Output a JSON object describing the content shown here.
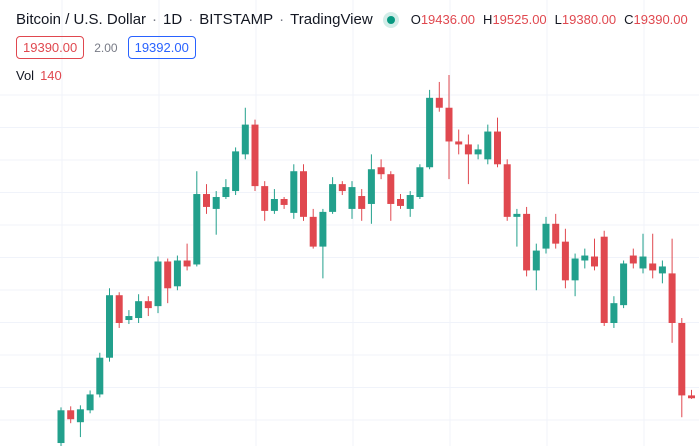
{
  "header": {
    "symbol": "Bitcoin / U.S. Dollar",
    "interval": "1D",
    "exchange": "BITSTAMP",
    "source": "TradingView",
    "ohlc": [
      {
        "key": "O",
        "value": "19436.00"
      },
      {
        "key": "H",
        "value": "19525.00"
      },
      {
        "key": "L",
        "value": "19380.00"
      },
      {
        "key": "C",
        "value": "19390.00"
      }
    ]
  },
  "quote": {
    "bid": "19390.00",
    "spread": "2.00",
    "ask": "19392.00"
  },
  "volume": {
    "label": "Vol",
    "value": "140"
  },
  "chart_data": {
    "type": "candlestick",
    "up_color": "#22a08c",
    "down_color": "#e0484f",
    "open": [
      18668,
      19196,
      19004,
      19196,
      19452,
      20044,
      21052,
      20652,
      20684,
      20956,
      20876,
      21596,
      21196,
      21612,
      21548,
      22684,
      22444,
      22636,
      22732,
      23324,
      23804,
      22812,
      22412,
      22604,
      22380,
      23052,
      22316,
      21836,
      22396,
      22844,
      22444,
      22652,
      22524,
      23116,
      23004,
      22604,
      22444,
      22636,
      23116,
      24236,
      24076,
      23532,
      23484,
      23324,
      23244,
      23692,
      23164,
      22316,
      22364,
      21452,
      21804,
      22204,
      21916,
      21292,
      21612,
      21676,
      21996,
      20604,
      20892,
      21692,
      21484,
      21564,
      21404,
      21404,
      20604,
      19436
    ],
    "high": [
      19244,
      19260,
      19276,
      19516,
      20124,
      21164,
      21100,
      20812,
      21068,
      21036,
      21676,
      21644,
      21692,
      21884,
      23052,
      22844,
      22732,
      22924,
      23436,
      24076,
      23884,
      22892,
      22764,
      22636,
      23164,
      23164,
      22444,
      22444,
      22956,
      22892,
      22892,
      22764,
      23324,
      23244,
      23052,
      22684,
      22732,
      23164,
      24364,
      24492,
      24604,
      23724,
      23644,
      23484,
      23804,
      23916,
      23244,
      22444,
      22476,
      21884,
      22316,
      22364,
      22124,
      21724,
      21804,
      21964,
      22092,
      21036,
      21612,
      21804,
      22044,
      22044,
      21612,
      21964,
      20684,
      19525
    ],
    "low": [
      18620,
      18988,
      18764,
      19148,
      19404,
      19980,
      20524,
      20588,
      20604,
      20716,
      20764,
      20924,
      21132,
      21452,
      21516,
      22364,
      22028,
      22604,
      22668,
      23244,
      22732,
      22252,
      22364,
      22444,
      22284,
      22252,
      21804,
      21324,
      22364,
      22668,
      22284,
      22252,
      22204,
      22924,
      22252,
      22444,
      22316,
      22604,
      23084,
      24012,
      22924,
      23324,
      22844,
      23244,
      23164,
      23116,
      22252,
      21836,
      21356,
      21132,
      21724,
      21804,
      21164,
      21036,
      21484,
      21452,
      20556,
      20524,
      20844,
      21484,
      21404,
      21324,
      21244,
      20284,
      19084,
      19380
    ],
    "close": [
      19196,
      19052,
      19212,
      19452,
      20044,
      21052,
      20604,
      20716,
      20956,
      20844,
      21596,
      21164,
      21612,
      21516,
      22684,
      22476,
      22636,
      22796,
      23372,
      23804,
      22812,
      22412,
      22604,
      22508,
      23052,
      22316,
      21836,
      22396,
      22844,
      22732,
      22796,
      22444,
      23084,
      23004,
      22524,
      22492,
      22668,
      23116,
      24236,
      24076,
      23532,
      23484,
      23324,
      23404,
      23692,
      23164,
      22316,
      22364,
      21452,
      21772,
      22204,
      21884,
      21292,
      21644,
      21692,
      21516,
      20604,
      20924,
      21564,
      21564,
      21676,
      21452,
      21516,
      20604,
      19436,
      19390
    ]
  }
}
